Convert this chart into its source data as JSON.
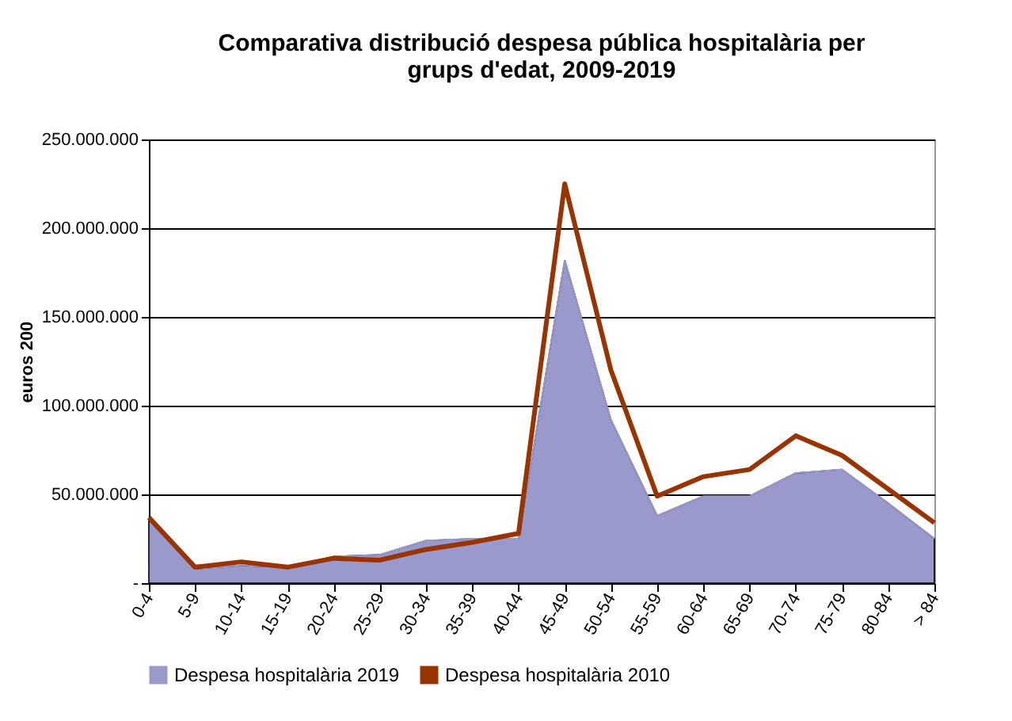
{
  "chart_data": {
    "type": "area",
    "title": "Comparativa distribució despesa pública hospitalària per grups d'edat, 2009-2019",
    "ylabel": "euros 200",
    "categories": [
      "0-4",
      "5-9",
      "10-14",
      "15-19",
      "20-24",
      "25-29",
      "30-34",
      "35-39",
      "40-44",
      "45-49",
      "50-54",
      "55-59",
      "60-64",
      "65-69",
      "70-74",
      "75-79",
      "80-84",
      "> 84"
    ],
    "series": [
      {
        "name": "Despesa hospitalària 2019",
        "color": "#9999cc",
        "values": [
          36000000,
          8000000,
          10000000,
          9000000,
          15000000,
          16000000,
          24000000,
          25000000,
          25000000,
          182000000,
          92000000,
          38000000,
          49000000,
          49000000,
          62000000,
          64000000,
          45000000,
          25000000
        ]
      },
      {
        "name": "Despesa hospitalària 2010",
        "type": "line",
        "color": "#993300",
        "values": [
          37000000,
          9000000,
          12000000,
          9000000,
          14000000,
          13000000,
          19000000,
          23000000,
          28000000,
          225000000,
          120000000,
          49000000,
          60000000,
          64000000,
          83000000,
          72000000,
          53000000,
          34000000
        ]
      }
    ],
    "ylim": [
      0,
      250000000
    ],
    "yticks": [
      {
        "value": 0,
        "label": "-"
      },
      {
        "value": 50000000,
        "label": "50.000.000"
      },
      {
        "value": 100000000,
        "label": "100.000.000"
      },
      {
        "value": 150000000,
        "label": "150.000.000"
      },
      {
        "value": 200000000,
        "label": "200.000.000"
      },
      {
        "value": 250000000,
        "label": "250.000.000"
      }
    ],
    "grid": "y",
    "legend": "bottom"
  }
}
